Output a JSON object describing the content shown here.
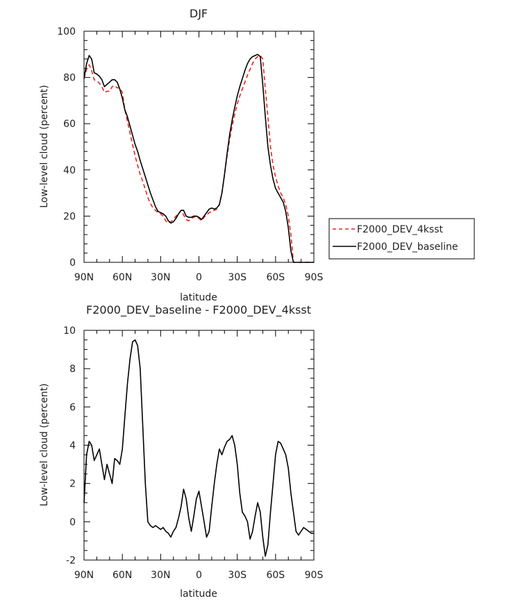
{
  "chart_data": [
    {
      "type": "line",
      "title": "DJF",
      "xlabel": "latitude",
      "ylabel": "Low-level cloud (percent)",
      "ylim": [
        0,
        100
      ],
      "yticks": [
        0,
        20,
        40,
        60,
        80,
        100
      ],
      "xlim": [
        90,
        -90
      ],
      "xticks": [
        {
          "value": 90,
          "label": "90N"
        },
        {
          "value": 60,
          "label": "60N"
        },
        {
          "value": 30,
          "label": "30N"
        },
        {
          "value": 0,
          "label": "0"
        },
        {
          "value": -30,
          "label": "30S"
        },
        {
          "value": -60,
          "label": "60S"
        },
        {
          "value": -90,
          "label": "90S"
        }
      ],
      "legend_position": "right",
      "series": [
        {
          "name": "F2000_DEV_4ksst",
          "color": "#e8251f",
          "dash": "dashed",
          "x": [
            90,
            88,
            86,
            84,
            82,
            80,
            78,
            76,
            74,
            72,
            70,
            68,
            66,
            64,
            62,
            60,
            58,
            56,
            54,
            52,
            50,
            48,
            46,
            44,
            42,
            40,
            38,
            36,
            34,
            32,
            30,
            28,
            26,
            24,
            22,
            20,
            18,
            16,
            14,
            12,
            10,
            8,
            6,
            4,
            2,
            0,
            -2,
            -4,
            -6,
            -8,
            -10,
            -12,
            -14,
            -16,
            -18,
            -20,
            -22,
            -24,
            -26,
            -28,
            -30,
            -32,
            -34,
            -36,
            -38,
            -40,
            -42,
            -44,
            -46,
            -48,
            -50,
            -52,
            -54,
            -56,
            -58,
            -60,
            -62,
            -64,
            -66,
            -68,
            -70,
            -72,
            -74,
            -76,
            -78,
            -80,
            -82,
            -84,
            -86,
            -88,
            -90
          ],
          "values": [
            79.5,
            83.5,
            85.5,
            83,
            79,
            78.5,
            77.5,
            76,
            73.5,
            74,
            74,
            76,
            76.5,
            75.5,
            75.5,
            73.5,
            66,
            61,
            56,
            51,
            46,
            42,
            38,
            35,
            31.5,
            28,
            25.5,
            23.5,
            22.5,
            21.5,
            21,
            20,
            18,
            17,
            17.5,
            18.5,
            20,
            21,
            22.5,
            20.5,
            18.5,
            18,
            19,
            19.5,
            20,
            19,
            18,
            19.5,
            20.5,
            21.5,
            22,
            22.5,
            23,
            25,
            30,
            38,
            46,
            53,
            59,
            64,
            68.5,
            72,
            75,
            78,
            81,
            83.5,
            86,
            88,
            89,
            89.5,
            88,
            75,
            63,
            50,
            42,
            37,
            33,
            30,
            28,
            25,
            20,
            12,
            0,
            0,
            0,
            0,
            0,
            0,
            0,
            0,
            0
          ]
        },
        {
          "name": "F2000_DEV_baseline",
          "color": "#000000",
          "dash": "solid",
          "x": [
            90,
            88,
            86,
            84,
            82,
            80,
            78,
            76,
            74,
            72,
            70,
            68,
            66,
            64,
            62,
            60,
            58,
            56,
            54,
            52,
            50,
            48,
            46,
            44,
            42,
            40,
            38,
            36,
            34,
            32,
            30,
            28,
            26,
            24,
            22,
            20,
            18,
            16,
            14,
            12,
            10,
            8,
            6,
            4,
            2,
            0,
            -2,
            -4,
            -6,
            -8,
            -10,
            -12,
            -14,
            -16,
            -18,
            -20,
            -22,
            -24,
            -26,
            -28,
            -30,
            -32,
            -34,
            -36,
            -38,
            -40,
            -42,
            -44,
            -46,
            -48,
            -50,
            -52,
            -54,
            -56,
            -58,
            -60,
            -62,
            -64,
            -66,
            -68,
            -70,
            -72,
            -74,
            -76,
            -78,
            -80,
            -82,
            -84,
            -86,
            -88,
            -90
          ],
          "values": [
            79.5,
            86,
            89.5,
            88,
            82,
            81.5,
            80.5,
            79,
            76,
            77,
            78,
            79,
            79,
            78,
            75,
            71,
            66,
            63,
            59,
            55,
            51,
            48,
            44,
            40.5,
            37,
            33.5,
            30,
            27,
            24,
            22,
            21.5,
            21,
            20,
            18,
            17,
            17.5,
            19,
            21,
            22.5,
            22.5,
            20,
            19.5,
            19.5,
            20,
            20,
            19.5,
            18.5,
            20,
            21.5,
            23,
            23.5,
            23,
            23.5,
            25,
            30,
            38,
            47,
            55,
            61.5,
            67,
            72,
            76,
            79.5,
            83,
            86,
            88,
            89,
            89.5,
            90,
            89,
            77,
            63,
            50,
            42,
            36,
            32,
            30,
            28,
            26,
            22,
            15,
            5,
            0,
            0,
            0,
            0,
            0,
            0,
            0,
            0,
            0
          ]
        }
      ]
    },
    {
      "type": "line",
      "title": "F2000_DEV_baseline - F2000_DEV_4ksst",
      "xlabel": "latitude",
      "ylabel": "Low-level cloud (percent)",
      "ylim": [
        -2,
        10
      ],
      "yticks": [
        -2,
        0,
        2,
        4,
        6,
        8,
        10
      ],
      "xlim": [
        90,
        -90
      ],
      "xticks": [
        {
          "value": 90,
          "label": "90N"
        },
        {
          "value": 60,
          "label": "60N"
        },
        {
          "value": 30,
          "label": "30N"
        },
        {
          "value": 0,
          "label": "0"
        },
        {
          "value": -30,
          "label": "30S"
        },
        {
          "value": -60,
          "label": "60S"
        },
        {
          "value": -90,
          "label": "90S"
        }
      ],
      "series": [
        {
          "color": "#000000",
          "dash": "solid",
          "x": [
            90,
            88,
            86,
            84,
            82,
            80,
            78,
            76,
            74,
            72,
            70,
            68,
            66,
            64,
            62,
            60,
            58,
            56,
            54,
            52,
            50,
            48,
            46,
            44,
            42,
            40,
            38,
            36,
            34,
            32,
            30,
            28,
            26,
            24,
            22,
            20,
            18,
            16,
            14,
            12,
            10,
            8,
            6,
            4,
            2,
            0,
            -2,
            -4,
            -6,
            -8,
            -10,
            -12,
            -14,
            -16,
            -18,
            -20,
            -22,
            -24,
            -26,
            -28,
            -30,
            -32,
            -34,
            -36,
            -38,
            -40,
            -42,
            -44,
            -46,
            -48,
            -50,
            -52,
            -54,
            -56,
            -58,
            -60,
            -62,
            -64,
            -66,
            -68,
            -70,
            -72,
            -74,
            -76,
            -78,
            -80,
            -82,
            -84,
            -86,
            -88,
            -90
          ],
          "values": [
            1.0,
            3.5,
            4.2,
            4.0,
            3.2,
            3.5,
            3.8,
            3.0,
            2.2,
            3.0,
            2.5,
            2.0,
            3.3,
            3.2,
            3.0,
            3.8,
            5.5,
            7.2,
            8.5,
            9.4,
            9.5,
            9.2,
            8.0,
            5.0,
            2.0,
            0.0,
            -0.2,
            -0.3,
            -0.2,
            -0.3,
            -0.4,
            -0.3,
            -0.5,
            -0.6,
            -0.8,
            -0.5,
            -0.3,
            0.2,
            0.8,
            1.7,
            1.2,
            0.2,
            -0.5,
            0.3,
            1.2,
            1.6,
            0.8,
            0.0,
            -0.8,
            -0.5,
            0.8,
            2.0,
            3.0,
            3.8,
            3.5,
            3.9,
            4.2,
            4.3,
            4.5,
            4.0,
            3.0,
            1.5,
            0.5,
            0.3,
            0.0,
            -0.9,
            -0.5,
            0.3,
            1.0,
            0.5,
            -0.8,
            -1.8,
            -1.2,
            0.5,
            2.0,
            3.5,
            4.2,
            4.1,
            3.8,
            3.5,
            2.8,
            1.5,
            0.5,
            -0.5,
            -0.7,
            -0.5,
            -0.3,
            -0.4,
            -0.5,
            -0.6,
            -0.6
          ]
        }
      ]
    }
  ]
}
